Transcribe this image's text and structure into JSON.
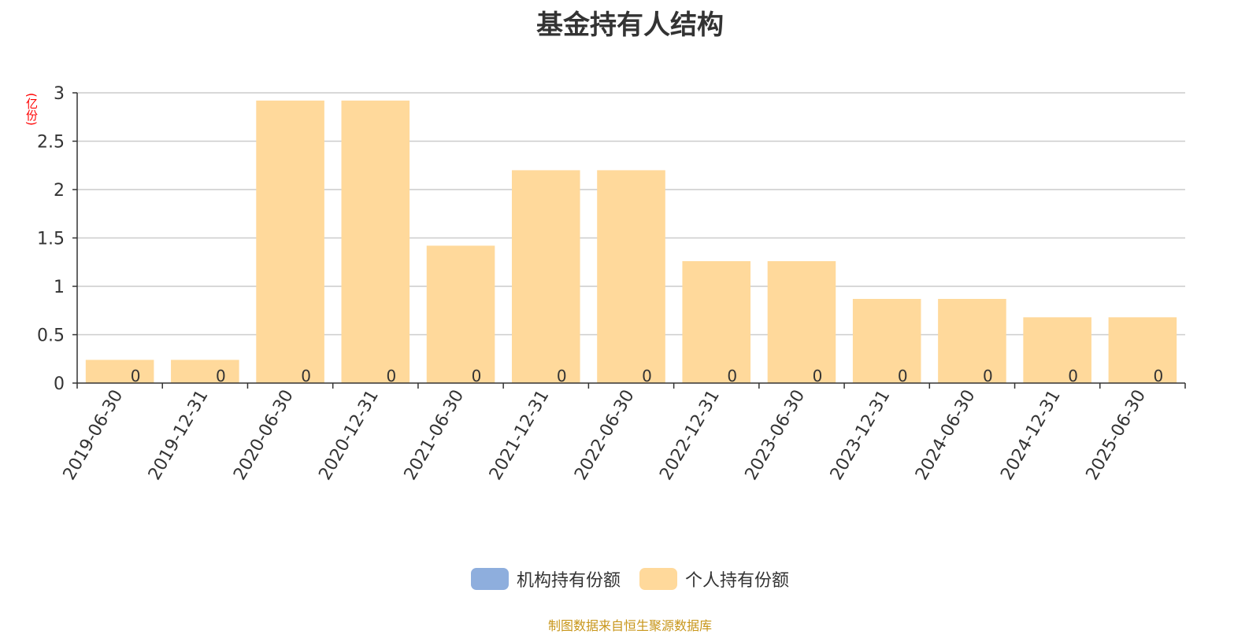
{
  "chart_data": {
    "type": "bar",
    "title": "基金持有人结构",
    "unit_label": "(亿份)",
    "categories": [
      "2019-06-30",
      "2019-12-31",
      "2020-06-30",
      "2020-12-31",
      "2021-06-30",
      "2021-12-31",
      "2022-06-30",
      "2022-12-31",
      "2023-06-30",
      "2023-12-31",
      "2024-06-30",
      "2024-12-31",
      "2025-06-30"
    ],
    "series": [
      {
        "name": "机构持有份额",
        "color": "#8eaedd",
        "values": [
          0,
          0,
          0,
          0,
          0,
          0,
          0,
          0,
          0,
          0,
          0,
          0,
          0
        ],
        "data_labels": [
          "0",
          "0",
          "0",
          "0",
          "0",
          "0",
          "0",
          "0",
          "0",
          "0",
          "0",
          "0",
          "0"
        ]
      },
      {
        "name": "个人持有份额",
        "color": "#ffd99b",
        "values": [
          0.24,
          0.24,
          2.92,
          2.92,
          1.42,
          2.2,
          2.2,
          1.26,
          1.26,
          0.87,
          0.87,
          0.68,
          0.68
        ]
      }
    ],
    "ylim": [
      0,
      3
    ],
    "yticks": [
      "0",
      "0.5",
      "1",
      "1.5",
      "2",
      "2.5",
      "3"
    ],
    "grid": true,
    "legend_position": "bottom-center",
    "source_note": "制图数据来自恒生聚源数据库"
  }
}
